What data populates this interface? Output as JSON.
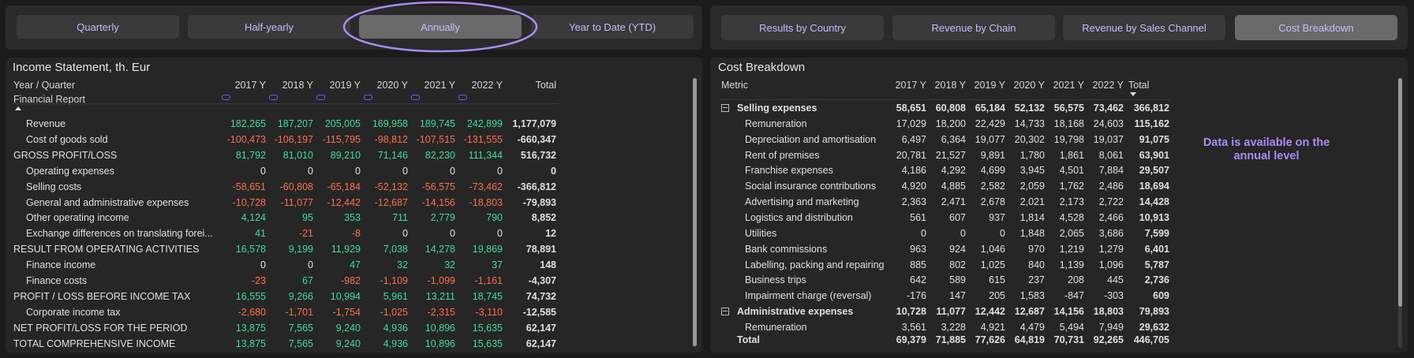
{
  "period_tabs": {
    "items": [
      "Quarterly",
      "Half-yearly",
      "Annually",
      "Year to Date (YTD)"
    ],
    "active": 2
  },
  "view_tabs": {
    "items": [
      "Results by Country",
      "Revenue by Chain",
      "Revenue by Sales Channel",
      "Cost Breakdown"
    ],
    "active": 3
  },
  "income_statement": {
    "title": "Income Statement, th. Eur",
    "header": [
      "Year / Quarter",
      "2017 Y",
      "2018 Y",
      "2019 Y",
      "2020 Y",
      "2021 Y",
      "2022 Y",
      "Total"
    ],
    "subheader": "Financial Report",
    "rows": [
      {
        "label": "Revenue",
        "level": 1,
        "values": [
          "182,265",
          "187,207",
          "205,005",
          "169,958",
          "189,745",
          "242,899",
          "1,177,079"
        ]
      },
      {
        "label": "Cost of goods sold",
        "level": 1,
        "values": [
          "-100,473",
          "-106,197",
          "-115,795",
          "-98,812",
          "-107,515",
          "-131,555",
          "-660,347"
        ]
      },
      {
        "label": "GROSS PROFIT/LOSS",
        "level": 0,
        "values": [
          "81,792",
          "81,010",
          "89,210",
          "71,146",
          "82,230",
          "111,344",
          "516,732"
        ]
      },
      {
        "label": "Operating expenses",
        "level": 1,
        "values": [
          "0",
          "0",
          "0",
          "0",
          "0",
          "0",
          "0"
        ]
      },
      {
        "label": "Selling costs",
        "level": 1,
        "values": [
          "-58,651",
          "-60,808",
          "-65,184",
          "-52,132",
          "-56,575",
          "-73,462",
          "-366,812"
        ]
      },
      {
        "label": "General and administrative expenses",
        "level": 1,
        "values": [
          "-10,728",
          "-11,077",
          "-12,442",
          "-12,687",
          "-14,156",
          "-18,803",
          "-79,893"
        ]
      },
      {
        "label": "Other operating income",
        "level": 1,
        "values": [
          "4,124",
          "95",
          "353",
          "711",
          "2,779",
          "790",
          "8,852"
        ]
      },
      {
        "label": "Exchange differences on translating forei...",
        "level": 1,
        "values": [
          "41",
          "-21",
          "-8",
          "0",
          "0",
          "0",
          "12"
        ]
      },
      {
        "label": "RESULT FROM OPERATING ACTIVITIES",
        "level": 0,
        "values": [
          "16,578",
          "9,199",
          "11,929",
          "7,038",
          "14,278",
          "19,869",
          "78,891"
        ]
      },
      {
        "label": "Finance income",
        "level": 1,
        "values": [
          "0",
          "0",
          "47",
          "32",
          "32",
          "37",
          "148"
        ]
      },
      {
        "label": "Finance costs",
        "level": 1,
        "values": [
          "-23",
          "67",
          "-982",
          "-1,109",
          "-1,099",
          "-1,161",
          "-4,307"
        ]
      },
      {
        "label": "PROFIT / LOSS BEFORE INCOME TAX",
        "level": 0,
        "values": [
          "16,555",
          "9,266",
          "10,994",
          "5,961",
          "13,211",
          "18,745",
          "74,732"
        ]
      },
      {
        "label": "Corporate income tax",
        "level": 1,
        "values": [
          "-2,680",
          "-1,701",
          "-1,754",
          "-1,025",
          "-2,315",
          "-3,110",
          "-12,585"
        ]
      },
      {
        "label": "NET PROFIT/LOSS FOR THE PERIOD",
        "level": 0,
        "values": [
          "13,875",
          "7,565",
          "9,240",
          "4,936",
          "10,896",
          "15,635",
          "62,147"
        ]
      },
      {
        "label": "TOTAL COMPREHENSIVE INCOME",
        "level": 0,
        "values": [
          "13,875",
          "7,565",
          "9,240",
          "4,936",
          "10,896",
          "15,635",
          "62,147"
        ]
      }
    ]
  },
  "cost_breakdown": {
    "title": "Cost Breakdown",
    "header": [
      "Metric",
      "2017 Y",
      "2018 Y",
      "2019 Y",
      "2020 Y",
      "2021 Y",
      "2022 Y",
      "Total"
    ],
    "rows": [
      {
        "label": "Selling expenses",
        "level": 0,
        "values": [
          "58,651",
          "60,808",
          "65,184",
          "52,132",
          "56,575",
          "73,462",
          "366,812"
        ]
      },
      {
        "label": "Remuneration",
        "level": 1,
        "values": [
          "17,029",
          "18,200",
          "22,429",
          "14,733",
          "18,168",
          "24,603",
          "115,162"
        ]
      },
      {
        "label": "Depreciation and amortisation",
        "level": 1,
        "values": [
          "6,497",
          "6,364",
          "19,077",
          "20,302",
          "19,798",
          "19,037",
          "91,075"
        ]
      },
      {
        "label": "Rent of premises",
        "level": 1,
        "values": [
          "20,781",
          "21,527",
          "9,891",
          "1,780",
          "1,861",
          "8,061",
          "63,901"
        ]
      },
      {
        "label": "Franchise expenses",
        "level": 1,
        "values": [
          "4,186",
          "4,292",
          "4,699",
          "3,945",
          "4,501",
          "7,884",
          "29,507"
        ]
      },
      {
        "label": "Social insurance contributions",
        "level": 1,
        "values": [
          "4,920",
          "4,885",
          "2,582",
          "2,059",
          "1,762",
          "2,486",
          "18,694"
        ]
      },
      {
        "label": "Advertising and marketing",
        "level": 1,
        "values": [
          "2,363",
          "2,471",
          "2,678",
          "2,021",
          "2,173",
          "2,722",
          "14,428"
        ]
      },
      {
        "label": "Logistics and distribution",
        "level": 1,
        "values": [
          "561",
          "607",
          "937",
          "1,814",
          "4,528",
          "2,466",
          "10,913"
        ]
      },
      {
        "label": "Utilities",
        "level": 1,
        "values": [
          "0",
          "0",
          "0",
          "1,848",
          "2,065",
          "3,686",
          "7,599"
        ]
      },
      {
        "label": "Bank commissions",
        "level": 1,
        "values": [
          "963",
          "924",
          "1,046",
          "970",
          "1,219",
          "1,279",
          "6,401"
        ]
      },
      {
        "label": "Labelling, packing and repairing",
        "level": 1,
        "values": [
          "885",
          "802",
          "1,025",
          "840",
          "1,139",
          "1,096",
          "5,787"
        ]
      },
      {
        "label": "Business trips",
        "level": 1,
        "values": [
          "642",
          "589",
          "615",
          "237",
          "208",
          "445",
          "2,736"
        ]
      },
      {
        "label": "Impairment charge (reversal)",
        "level": 1,
        "values": [
          "-176",
          "147",
          "205",
          "1,583",
          "-847",
          "-303",
          "609"
        ]
      },
      {
        "label": "Administrative expenses",
        "level": 0,
        "values": [
          "10,728",
          "11,077",
          "12,442",
          "12,687",
          "14,156",
          "18,803",
          "79,893"
        ]
      },
      {
        "label": "Remuneration",
        "level": 1,
        "values": [
          "3,561",
          "3,228",
          "4,921",
          "4,479",
          "5,494",
          "7,949",
          "29,632"
        ]
      }
    ],
    "total": {
      "label": "Total",
      "values": [
        "69,379",
        "71,885",
        "77,626",
        "64,819",
        "70,731",
        "92,265",
        "446,705"
      ]
    }
  },
  "note": "Data is available on the annual level"
}
